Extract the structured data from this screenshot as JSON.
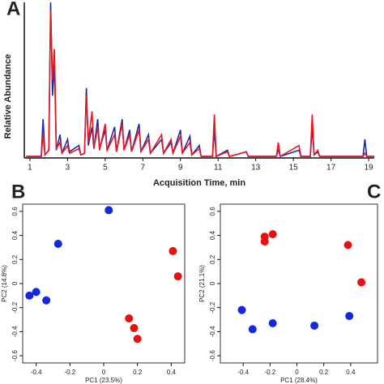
{
  "chart_data": [
    {
      "type": "line",
      "panel": "A",
      "xlabel": "Acquisition Time, min",
      "ylabel": "Relative Abundance",
      "xlim": [
        0.7,
        19.3
      ],
      "xticks": [
        1,
        3,
        5,
        7,
        9,
        11,
        13,
        15,
        17,
        19
      ],
      "ylim": [
        0,
        100
      ],
      "x": [
        0.8,
        1.6,
        1.7,
        1.8,
        2.0,
        2.1,
        2.2,
        2.3,
        2.4,
        2.6,
        2.7,
        3.0,
        3.1,
        3.6,
        3.7,
        3.9,
        4.0,
        4.1,
        4.3,
        4.4,
        4.6,
        4.7,
        5.0,
        5.1,
        5.5,
        5.6,
        5.9,
        6.0,
        6.3,
        6.4,
        6.8,
        6.9,
        7.3,
        7.4,
        8.0,
        8.1,
        8.5,
        8.6,
        9.0,
        9.1,
        9.5,
        9.6,
        10.0,
        10.1,
        10.7,
        10.8,
        10.9,
        11.5,
        11.6,
        12.5,
        12.6,
        14.1,
        14.2,
        14.3,
        15.3,
        15.4,
        15.9,
        16.0,
        16.1,
        16.3,
        16.4,
        18.7,
        18.8,
        18.9,
        19.3
      ],
      "series": [
        {
          "color": "#1f2aa8",
          "values": [
            1,
            1,
            25,
            2,
            5,
            100,
            40,
            60,
            5,
            15,
            3,
            12,
            4,
            8,
            2,
            3,
            45,
            8,
            20,
            6,
            25,
            6,
            18,
            5,
            20,
            4,
            25,
            5,
            18,
            4,
            22,
            4,
            15,
            3,
            12,
            3,
            10,
            3,
            18,
            3,
            14,
            2,
            8,
            1,
            1,
            18,
            1,
            5,
            1,
            4,
            1,
            1,
            6,
            1,
            5,
            1,
            1,
            20,
            2,
            4,
            1,
            1,
            12,
            1,
            1
          ]
        },
        {
          "color": "#e8181e",
          "values": [
            1,
            1,
            15,
            2,
            5,
            95,
            50,
            70,
            6,
            10,
            3,
            8,
            3,
            6,
            2,
            3,
            40,
            10,
            30,
            6,
            20,
            5,
            22,
            5,
            15,
            4,
            22,
            5,
            15,
            4,
            18,
            4,
            12,
            3,
            15,
            3,
            12,
            3,
            14,
            3,
            10,
            2,
            6,
            1,
            1,
            28,
            1,
            4,
            1,
            4,
            1,
            1,
            10,
            1,
            8,
            1,
            1,
            28,
            2,
            5,
            1,
            1,
            3,
            1,
            1
          ]
        }
      ]
    },
    {
      "type": "scatter",
      "panel": "B",
      "xlabel": "PC1 (23.5%)",
      "ylabel": "PC2 (14.8%)",
      "xlim": [
        -0.48,
        0.48
      ],
      "xticks": [
        -0.4,
        -0.2,
        0,
        0.2,
        0.4
      ],
      "ylim": [
        -0.66,
        0.66
      ],
      "yticks": [
        -0.6,
        -0.4,
        -0.2,
        0,
        0.2,
        0.4,
        0.6
      ],
      "series": [
        {
          "color": "#1428e0",
          "x": [
            0.03,
            -0.27,
            -0.4,
            -0.44,
            -0.34
          ],
          "values": [
            0.61,
            0.33,
            -0.07,
            -0.1,
            -0.14
          ]
        },
        {
          "color": "#e81010",
          "x": [
            0.41,
            0.44,
            0.15,
            0.18,
            0.2
          ],
          "values": [
            0.27,
            0.06,
            -0.29,
            -0.37,
            -0.46
          ]
        }
      ]
    },
    {
      "type": "scatter",
      "panel": "C",
      "xlabel": "PC1 (28.4%)",
      "ylabel": "PC2 (21.1%)",
      "xlim": [
        -0.57,
        0.6
      ],
      "xticks": [
        -0.4,
        -0.2,
        0,
        0.2,
        0.4
      ],
      "ylim": [
        -0.66,
        0.66
      ],
      "yticks": [
        -0.6,
        -0.4,
        -0.2,
        0,
        0.2,
        0.4,
        0.6
      ],
      "series": [
        {
          "color": "#1428e0",
          "x": [
            -0.41,
            -0.33,
            -0.18,
            0.13,
            0.39
          ],
          "values": [
            -0.22,
            -0.38,
            -0.33,
            -0.35,
            -0.27
          ]
        },
        {
          "color": "#e81010",
          "x": [
            -0.24,
            -0.18,
            -0.24,
            0.38,
            0.48
          ],
          "values": [
            0.39,
            0.41,
            0.35,
            0.32,
            0.01
          ]
        }
      ]
    }
  ]
}
